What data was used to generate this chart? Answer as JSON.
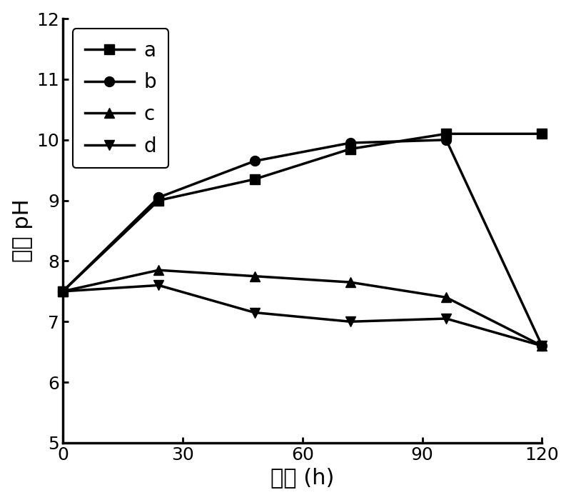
{
  "x": [
    0,
    24,
    48,
    72,
    96,
    120
  ],
  "series_a": [
    7.5,
    9.0,
    9.35,
    9.85,
    10.1,
    10.1
  ],
  "series_b": [
    7.5,
    9.05,
    9.65,
    9.95,
    10.0,
    6.6
  ],
  "series_c": [
    7.5,
    7.85,
    7.75,
    7.65,
    7.4,
    6.6
  ],
  "series_d": [
    7.5,
    7.6,
    7.15,
    7.0,
    7.05,
    6.6
  ],
  "xlabel": "时间 (h)",
  "ylabel": "阴极 pH",
  "xlim": [
    0,
    120
  ],
  "ylim": [
    5,
    12
  ],
  "yticks": [
    5,
    6,
    7,
    8,
    9,
    10,
    11,
    12
  ],
  "xticks": [
    0,
    30,
    60,
    90,
    120
  ],
  "legend_labels": [
    "a",
    "b",
    "c",
    "d"
  ],
  "line_color": "#000000",
  "linewidth": 2.5,
  "markersize": 10,
  "markers": [
    "s",
    "o",
    "^",
    "v"
  ],
  "xlabel_fontsize": 22,
  "ylabel_fontsize": 22,
  "tick_fontsize": 18,
  "legend_fontsize": 20,
  "figure_width": 8.0,
  "figure_height": 7.0
}
